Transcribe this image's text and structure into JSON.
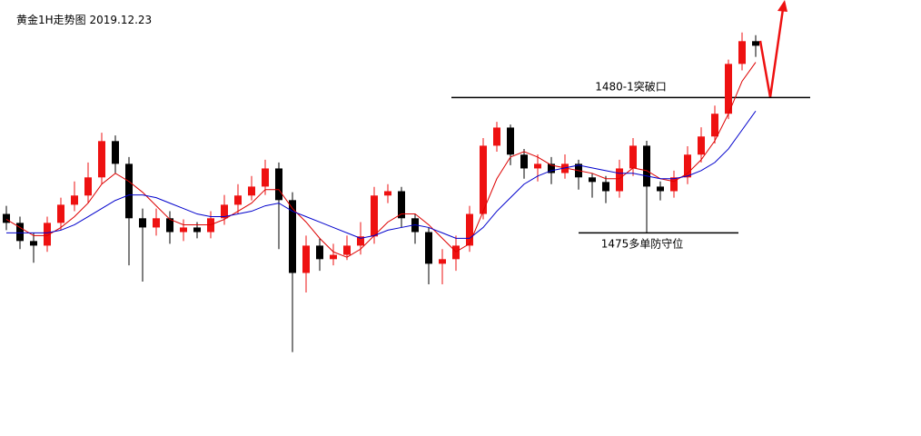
{
  "chart_data": {
    "type": "candlestick",
    "title": "黄金1H走势图 2019.12.23",
    "up_color": "#ee1111",
    "down_color": "#000000",
    "ylim": [
      1467.5,
      1483.6
    ],
    "open": [
      1475.7,
      1475.37,
      1474.7,
      1474.53,
      1475.37,
      1476.04,
      1476.38,
      1477.05,
      1478.39,
      1477.55,
      1475.54,
      1475.2,
      1475.54,
      1475.03,
      1475.2,
      1475.03,
      1475.54,
      1476.04,
      1476.38,
      1476.71,
      1477.38,
      1476.21,
      1473.52,
      1474.53,
      1474.03,
      1474.19,
      1474.53,
      1474.87,
      1476.38,
      1476.54,
      1475.54,
      1475.03,
      1473.86,
      1474.03,
      1474.53,
      1475.7,
      1478.22,
      1478.89,
      1477.89,
      1477.38,
      1477.55,
      1477.21,
      1477.55,
      1477.05,
      1476.88,
      1476.54,
      1477.38,
      1478.22,
      1476.71,
      1476.54,
      1477.05,
      1477.89,
      1478.56,
      1479.4,
      1481.24,
      1482.08
    ],
    "high": [
      1476.0,
      1475.6,
      1475.0,
      1475.6,
      1476.3,
      1476.9,
      1477.6,
      1478.7,
      1478.6,
      1477.8,
      1475.9,
      1475.9,
      1475.8,
      1475.5,
      1475.4,
      1475.8,
      1476.4,
      1476.8,
      1477.1,
      1477.7,
      1477.6,
      1476.5,
      1474.9,
      1474.8,
      1474.6,
      1474.9,
      1475.4,
      1476.7,
      1476.8,
      1476.7,
      1475.7,
      1475.2,
      1474.4,
      1474.9,
      1476.0,
      1478.5,
      1479.1,
      1479.0,
      1478.1,
      1477.9,
      1477.8,
      1477.9,
      1477.7,
      1477.2,
      1477.1,
      1477.7,
      1478.5,
      1478.4,
      1476.9,
      1477.3,
      1478.2,
      1478.9,
      1479.7,
      1481.4,
      1482.4,
      1482.3
    ],
    "low": [
      1475.1,
      1474.4,
      1473.9,
      1474.3,
      1475.1,
      1475.8,
      1476.1,
      1476.8,
      1477.2,
      1473.8,
      1473.2,
      1474.9,
      1474.6,
      1474.7,
      1474.8,
      1474.8,
      1475.3,
      1475.7,
      1476.2,
      1476.4,
      1474.4,
      1470.6,
      1472.8,
      1473.6,
      1473.8,
      1474.0,
      1474.2,
      1474.6,
      1476.1,
      1475.2,
      1474.6,
      1473.1,
      1473.1,
      1473.6,
      1474.3,
      1475.5,
      1478.0,
      1477.5,
      1477.0,
      1476.9,
      1476.8,
      1477.0,
      1476.6,
      1476.3,
      1476.1,
      1476.3,
      1477.1,
      1475.0,
      1476.2,
      1476.3,
      1476.8,
      1477.6,
      1478.3,
      1479.2,
      1481.0,
      1481.5
    ],
    "close": [
      1475.37,
      1474.7,
      1474.53,
      1475.37,
      1476.04,
      1476.38,
      1477.05,
      1478.39,
      1477.55,
      1475.54,
      1475.2,
      1475.54,
      1475.03,
      1475.2,
      1475.03,
      1475.54,
      1476.04,
      1476.38,
      1476.71,
      1477.38,
      1476.21,
      1473.52,
      1474.53,
      1474.03,
      1474.19,
      1474.53,
      1474.87,
      1476.38,
      1476.54,
      1475.54,
      1475.03,
      1473.86,
      1474.03,
      1474.53,
      1475.7,
      1478.22,
      1478.89,
      1477.89,
      1477.38,
      1477.55,
      1477.21,
      1477.55,
      1477.05,
      1476.88,
      1476.54,
      1477.38,
      1478.22,
      1476.71,
      1476.54,
      1477.05,
      1477.89,
      1478.56,
      1479.4,
      1481.24,
      1482.08,
      1481.91
    ],
    "series": [
      {
        "color": "#dd0000",
        "values": [
          1475.5,
          1475.2,
          1474.9,
          1474.9,
          1475.2,
          1475.6,
          1476.1,
          1476.8,
          1477.2,
          1476.9,
          1476.5,
          1476.0,
          1475.5,
          1475.3,
          1475.3,
          1475.3,
          1475.5,
          1475.8,
          1476.1,
          1476.6,
          1476.6,
          1475.9,
          1475.4,
          1474.8,
          1474.3,
          1474.1,
          1474.4,
          1474.9,
          1475.4,
          1475.7,
          1475.7,
          1475.3,
          1474.8,
          1474.3,
          1474.6,
          1475.8,
          1477.0,
          1477.8,
          1478.0,
          1477.8,
          1477.5,
          1477.4,
          1477.3,
          1477.2,
          1477.0,
          1477.0,
          1477.4,
          1477.3,
          1477.0,
          1476.9,
          1477.2,
          1477.7,
          1478.4,
          1479.4,
          1480.6,
          1481.3
        ]
      },
      {
        "color": "#0000cc",
        "values": [
          1475.0,
          1475.0,
          1475.0,
          1475.0,
          1475.1,
          1475.3,
          1475.6,
          1475.9,
          1476.2,
          1476.4,
          1476.4,
          1476.3,
          1476.1,
          1475.9,
          1475.7,
          1475.6,
          1475.6,
          1475.7,
          1475.8,
          1476.0,
          1476.1,
          1475.8,
          1475.6,
          1475.4,
          1475.2,
          1475.0,
          1474.8,
          1474.9,
          1475.1,
          1475.2,
          1475.3,
          1475.2,
          1475.0,
          1474.8,
          1474.8,
          1475.2,
          1475.8,
          1476.3,
          1476.8,
          1477.1,
          1477.3,
          1477.4,
          1477.5,
          1477.4,
          1477.3,
          1477.2,
          1477.2,
          1477.1,
          1477.0,
          1477.0,
          1477.1,
          1477.3,
          1477.6,
          1478.1,
          1478.8,
          1479.5
        ]
      }
    ],
    "levels": [
      {
        "value": 1480,
        "label": "1480-1突破口"
      },
      {
        "value": 1475,
        "label": "1475多单防守位"
      }
    ]
  }
}
